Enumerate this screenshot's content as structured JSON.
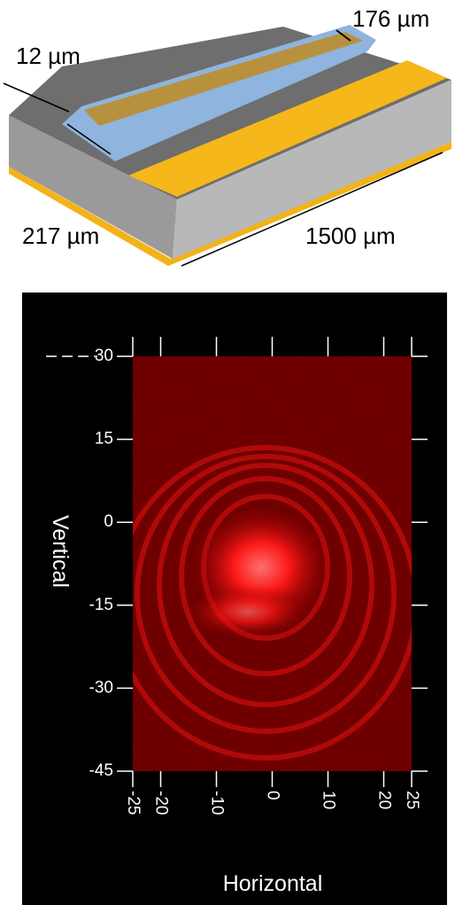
{
  "diagram": {
    "labels": [
      "176 µm",
      "12 µm",
      "217 µm",
      "1500 µm"
    ]
  },
  "chart_data": {
    "type": "image",
    "xlabel": "Horizontal",
    "ylabel": "Vertical",
    "xlim": [
      -25,
      25
    ],
    "xticks": [
      -25,
      -20,
      -10,
      0,
      10,
      20,
      25
    ],
    "ylim": [
      -45,
      30
    ],
    "yticks": [
      30,
      15,
      0,
      -15,
      -30,
      -45
    ]
  }
}
